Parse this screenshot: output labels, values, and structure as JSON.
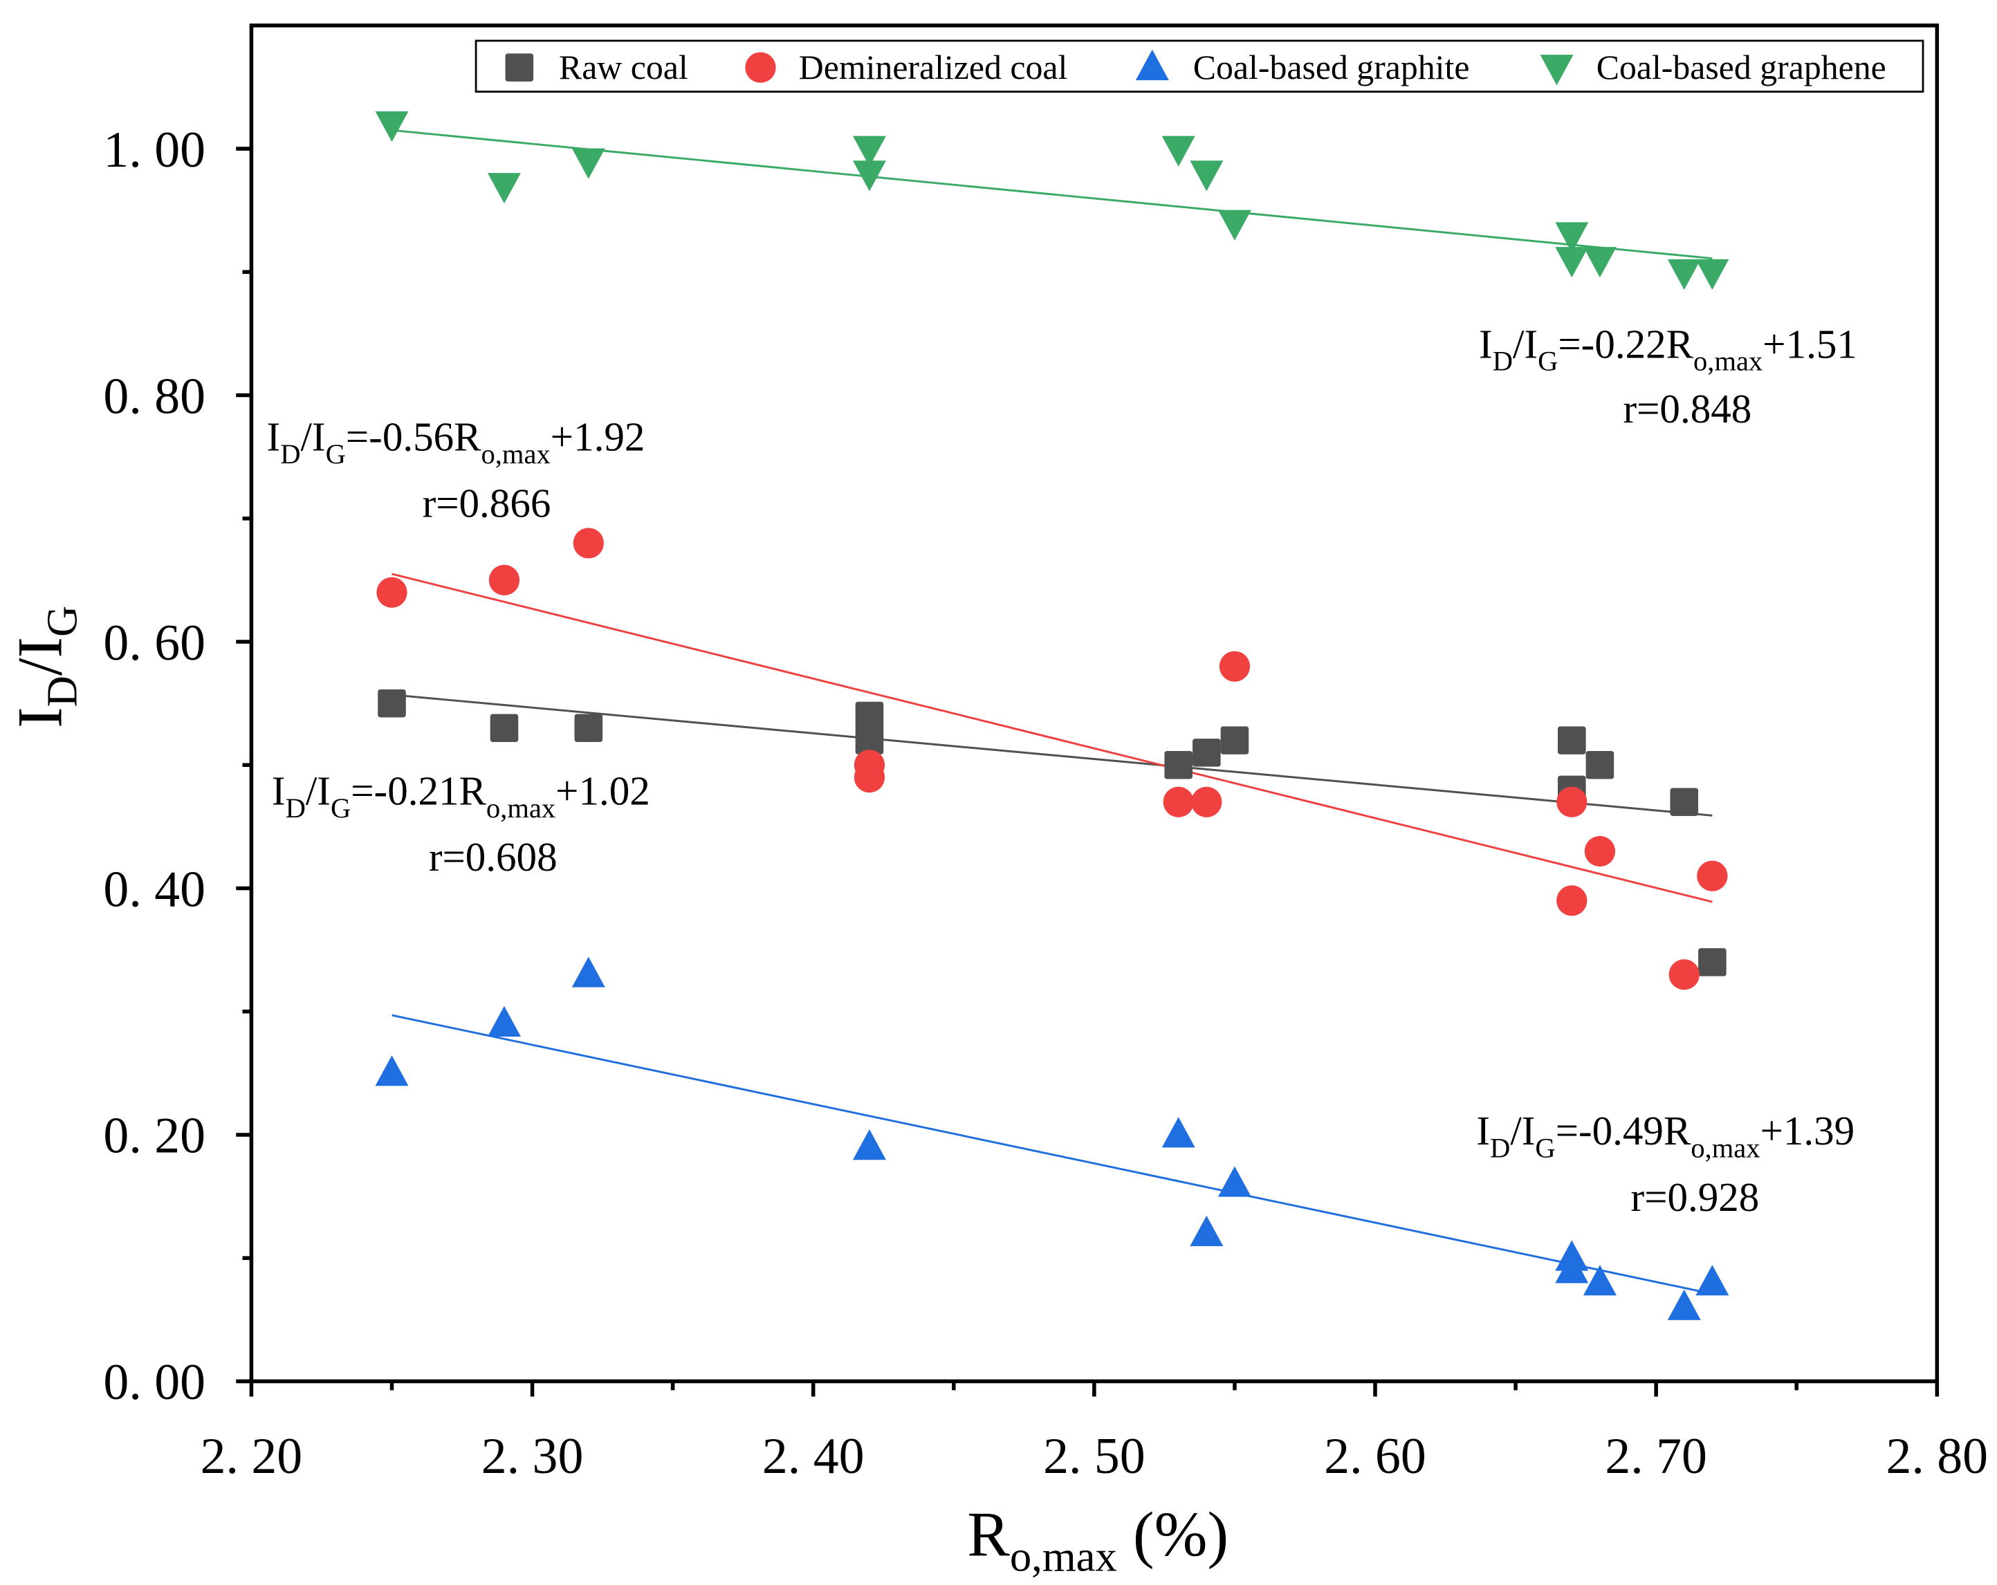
{
  "chart_data": {
    "type": "scatter",
    "xlabel": {
      "main": "R",
      "sub": "o,max",
      "suffix": " (%)"
    },
    "ylabel": {
      "i1": "I",
      "s1": "D",
      "i2": "/I",
      "s2": "G"
    },
    "xlim": [
      2.2,
      2.8
    ],
    "ylim": [
      0,
      1.1
    ],
    "x_ticks": [
      2.2,
      2.3,
      2.4,
      2.5,
      2.6,
      2.7,
      2.8
    ],
    "x_tick_labels": [
      "2. 20",
      "2. 30",
      "2. 40",
      "2. 50",
      "2. 60",
      "2. 70",
      "2. 80"
    ],
    "y_ticks": [
      0,
      0.2,
      0.4,
      0.6,
      0.8,
      1.0
    ],
    "y_tick_labels": [
      "0. 00",
      "0. 20",
      "0. 40",
      "0. 60",
      "0. 80",
      "1. 00"
    ],
    "grid": false,
    "legend_placement": "top-right",
    "series": [
      {
        "name": "Raw coal",
        "marker": "square",
        "color": "#505050",
        "x": [
          2.25,
          2.29,
          2.32,
          2.42,
          2.42,
          2.53,
          2.54,
          2.55,
          2.67,
          2.67,
          2.68,
          2.71,
          2.72
        ],
        "y": [
          0.55,
          0.53,
          0.53,
          0.54,
          0.52,
          0.5,
          0.51,
          0.52,
          0.52,
          0.48,
          0.5,
          0.47,
          0.34
        ],
        "fit": {
          "x": [
            2.25,
            2.72
          ],
          "y": [
            0.557,
            0.459
          ]
        }
      },
      {
        "name": "Demineralized coal",
        "marker": "circle",
        "color": "#F04040",
        "x": [
          2.25,
          2.29,
          2.32,
          2.42,
          2.42,
          2.53,
          2.54,
          2.55,
          2.67,
          2.67,
          2.68,
          2.71,
          2.72
        ],
        "y": [
          0.64,
          0.65,
          0.68,
          0.5,
          0.49,
          0.47,
          0.47,
          0.58,
          0.47,
          0.39,
          0.43,
          0.33,
          0.41
        ],
        "fit": {
          "x": [
            2.25,
            2.72
          ],
          "y": [
            0.655,
            0.389
          ]
        }
      },
      {
        "name": "Coal-based graphite",
        "marker": "triangle-up",
        "color": "#1F6FE0",
        "x": [
          2.25,
          2.29,
          2.32,
          2.42,
          2.53,
          2.54,
          2.55,
          2.67,
          2.67,
          2.68,
          2.71,
          2.72
        ],
        "y": [
          0.25,
          0.29,
          0.33,
          0.19,
          0.2,
          0.12,
          0.16,
          0.1,
          0.09,
          0.08,
          0.06,
          0.08
        ],
        "fit": {
          "x": [
            2.25,
            2.72
          ],
          "y": [
            0.297,
            0.071
          ]
        }
      },
      {
        "name": "Coal-based graphene",
        "marker": "triangle-down",
        "color": "#3AAA66",
        "x": [
          2.25,
          2.29,
          2.32,
          2.42,
          2.42,
          2.53,
          2.54,
          2.55,
          2.67,
          2.67,
          2.68,
          2.71,
          2.72
        ],
        "y": [
          1.02,
          0.97,
          0.99,
          1.0,
          0.98,
          1.0,
          0.98,
          0.94,
          0.93,
          0.91,
          0.91,
          0.9,
          0.9
        ],
        "fit": {
          "x": [
            2.25,
            2.72
          ],
          "y": [
            1.015,
            0.911
          ]
        }
      }
    ],
    "annotations": [
      {
        "eq": {
          "a": "I",
          "b": "D",
          "c": "/I",
          "d": "G",
          "e": "=-0.21R",
          "f": "o,max",
          "g": "+1.02"
        },
        "r": "r=0.608",
        "series": "Raw coal"
      },
      {
        "eq": {
          "a": "I",
          "b": "D",
          "c": "/I",
          "d": "G",
          "e": "=-0.56R",
          "f": "o,max",
          "g": "+1.92"
        },
        "r": "r=0.866",
        "series": "Demineralized coal"
      },
      {
        "eq": {
          "a": "I",
          "b": "D",
          "c": "/I",
          "d": "G",
          "e": "=-0.49R",
          "f": "o,max",
          "g": "+1.39"
        },
        "r": "r=0.928",
        "series": "Coal-based graphite"
      },
      {
        "eq": {
          "a": "I",
          "b": "D",
          "c": "/I",
          "d": "G",
          "e": "=-0.22R",
          "f": "o,max",
          "g": "+1.51"
        },
        "r": "r=0.848",
        "series": "Coal-based graphene"
      }
    ]
  }
}
